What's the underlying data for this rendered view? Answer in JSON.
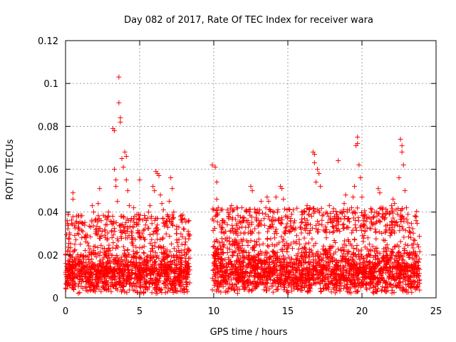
{
  "chart_data": {
    "type": "scatter",
    "title": "Day 082 of 2017, Rate Of TEC Index for receiver wara",
    "xlabel": "GPS time / hours",
    "ylabel": "ROTI / TECUs",
    "xlim": [
      0,
      25
    ],
    "ylim": [
      0,
      0.12
    ],
    "x_ticks": [
      0,
      5,
      10,
      15,
      20,
      25
    ],
    "x_tick_labels": [
      "0",
      "5",
      "10",
      "15",
      "20",
      "25"
    ],
    "y_ticks": [
      0,
      0.02,
      0.04,
      0.06,
      0.08,
      0.1,
      0.12
    ],
    "y_tick_labels": [
      "0",
      "0.02",
      "0.04",
      "0.06",
      "0.08",
      "0.1",
      "0.12"
    ],
    "grid": true,
    "marker": "+",
    "color": "#ff0000",
    "data_gap": [
      8.4,
      9.9
    ],
    "series": [
      {
        "name": "ROTI",
        "points": [
          [
            0.1,
            0.01
          ],
          [
            0.2,
            0.014
          ],
          [
            0.3,
            0.018
          ],
          [
            0.4,
            0.012
          ],
          [
            0.5,
            0.049
          ],
          [
            0.5,
            0.046
          ],
          [
            0.6,
            0.022
          ],
          [
            0.7,
            0.035
          ],
          [
            0.8,
            0.03
          ],
          [
            0.9,
            0.016
          ],
          [
            1.0,
            0.025
          ],
          [
            1.1,
            0.035
          ],
          [
            1.2,
            0.019
          ],
          [
            1.4,
            0.028
          ],
          [
            1.5,
            0.012
          ],
          [
            1.6,
            0.02
          ],
          [
            1.7,
            0.033
          ],
          [
            1.8,
            0.043
          ],
          [
            1.9,
            0.04
          ],
          [
            2.0,
            0.024
          ],
          [
            2.1,
            0.03
          ],
          [
            2.2,
            0.044
          ],
          [
            2.3,
            0.051
          ],
          [
            2.4,
            0.036
          ],
          [
            2.5,
            0.018
          ],
          [
            2.6,
            0.021
          ],
          [
            2.7,
            0.034
          ],
          [
            2.8,
            0.027
          ],
          [
            2.9,
            0.04
          ],
          [
            3.0,
            0.022
          ],
          [
            3.1,
            0.031
          ],
          [
            3.2,
            0.079
          ],
          [
            3.3,
            0.078
          ],
          [
            3.3,
            0.06
          ],
          [
            3.4,
            0.055
          ],
          [
            3.4,
            0.052
          ],
          [
            3.5,
            0.045
          ],
          [
            3.6,
            0.103
          ],
          [
            3.6,
            0.091
          ],
          [
            3.7,
            0.084
          ],
          [
            3.7,
            0.082
          ],
          [
            3.8,
            0.065
          ],
          [
            3.9,
            0.061
          ],
          [
            4.0,
            0.068
          ],
          [
            4.1,
            0.066
          ],
          [
            4.1,
            0.055
          ],
          [
            4.2,
            0.05
          ],
          [
            4.3,
            0.043
          ],
          [
            4.4,
            0.036
          ],
          [
            4.5,
            0.028
          ],
          [
            4.6,
            0.042
          ],
          [
            4.8,
            0.035
          ],
          [
            4.9,
            0.03
          ],
          [
            5.0,
            0.055
          ],
          [
            5.1,
            0.028
          ],
          [
            5.3,
            0.024
          ],
          [
            5.4,
            0.034
          ],
          [
            5.6,
            0.04
          ],
          [
            5.7,
            0.043
          ],
          [
            5.8,
            0.038
          ],
          [
            5.9,
            0.052
          ],
          [
            6.0,
            0.05
          ],
          [
            6.1,
            0.059
          ],
          [
            6.2,
            0.058
          ],
          [
            6.3,
            0.057
          ],
          [
            6.4,
            0.048
          ],
          [
            6.5,
            0.044
          ],
          [
            6.6,
            0.041
          ],
          [
            6.8,
            0.036
          ],
          [
            6.9,
            0.033
          ],
          [
            7.0,
            0.045
          ],
          [
            7.1,
            0.056
          ],
          [
            7.2,
            0.051
          ],
          [
            7.3,
            0.04
          ],
          [
            7.5,
            0.03
          ],
          [
            7.6,
            0.024
          ],
          [
            7.8,
            0.022
          ],
          [
            7.9,
            0.037
          ],
          [
            8.0,
            0.032
          ],
          [
            8.1,
            0.026
          ],
          [
            8.2,
            0.021
          ],
          [
            8.3,
            0.016
          ],
          [
            9.9,
            0.062
          ],
          [
            10.0,
            0.041
          ],
          [
            10.0,
            0.036
          ],
          [
            10.1,
            0.061
          ],
          [
            10.2,
            0.054
          ],
          [
            10.2,
            0.046
          ],
          [
            10.3,
            0.042
          ],
          [
            10.4,
            0.034
          ],
          [
            10.5,
            0.033
          ],
          [
            10.6,
            0.036
          ],
          [
            10.7,
            0.03
          ],
          [
            10.8,
            0.031
          ],
          [
            10.9,
            0.028
          ],
          [
            11.0,
            0.038
          ],
          [
            11.1,
            0.025
          ],
          [
            11.2,
            0.043
          ],
          [
            11.3,
            0.041
          ],
          [
            11.4,
            0.026
          ],
          [
            11.5,
            0.03
          ],
          [
            11.6,
            0.032
          ],
          [
            11.8,
            0.035
          ],
          [
            11.9,
            0.042
          ],
          [
            12.0,
            0.036
          ],
          [
            12.2,
            0.041
          ],
          [
            12.3,
            0.035
          ],
          [
            12.4,
            0.04
          ],
          [
            12.5,
            0.052
          ],
          [
            12.6,
            0.05
          ],
          [
            12.8,
            0.04
          ],
          [
            12.9,
            0.036
          ],
          [
            13.0,
            0.034
          ],
          [
            13.1,
            0.041
          ],
          [
            13.2,
            0.045
          ],
          [
            13.4,
            0.037
          ],
          [
            13.5,
            0.039
          ],
          [
            13.6,
            0.047
          ],
          [
            13.7,
            0.045
          ],
          [
            13.8,
            0.041
          ],
          [
            13.9,
            0.036
          ],
          [
            14.0,
            0.033
          ],
          [
            14.1,
            0.03
          ],
          [
            14.2,
            0.047
          ],
          [
            14.3,
            0.04
          ],
          [
            14.4,
            0.036
          ],
          [
            14.5,
            0.052
          ],
          [
            14.6,
            0.051
          ],
          [
            14.7,
            0.046
          ],
          [
            14.8,
            0.03
          ],
          [
            14.9,
            0.033
          ],
          [
            15.0,
            0.038
          ],
          [
            15.2,
            0.031
          ],
          [
            15.4,
            0.026
          ],
          [
            15.6,
            0.029
          ],
          [
            15.8,
            0.025
          ],
          [
            15.9,
            0.032
          ],
          [
            16.0,
            0.04
          ],
          [
            16.2,
            0.035
          ],
          [
            16.3,
            0.043
          ],
          [
            16.5,
            0.042
          ],
          [
            16.6,
            0.038
          ],
          [
            16.7,
            0.068
          ],
          [
            16.8,
            0.067
          ],
          [
            16.8,
            0.063
          ],
          [
            16.9,
            0.054
          ],
          [
            17.0,
            0.06
          ],
          [
            17.1,
            0.058
          ],
          [
            17.2,
            0.052
          ],
          [
            17.3,
            0.034
          ],
          [
            17.5,
            0.031
          ],
          [
            17.6,
            0.028
          ],
          [
            17.8,
            0.043
          ],
          [
            17.9,
            0.037
          ],
          [
            18.0,
            0.035
          ],
          [
            18.1,
            0.033
          ],
          [
            18.3,
            0.038
          ],
          [
            18.4,
            0.064
          ],
          [
            18.5,
            0.031
          ],
          [
            18.7,
            0.034
          ],
          [
            18.8,
            0.044
          ],
          [
            18.9,
            0.048
          ],
          [
            19.0,
            0.04
          ],
          [
            19.1,
            0.037
          ],
          [
            19.3,
            0.042
          ],
          [
            19.4,
            0.047
          ],
          [
            19.5,
            0.052
          ],
          [
            19.6,
            0.071
          ],
          [
            19.7,
            0.075
          ],
          [
            19.7,
            0.072
          ],
          [
            19.8,
            0.062
          ],
          [
            19.9,
            0.056
          ],
          [
            20.0,
            0.047
          ],
          [
            20.1,
            0.036
          ],
          [
            20.2,
            0.031
          ],
          [
            20.4,
            0.028
          ],
          [
            20.5,
            0.025
          ],
          [
            20.6,
            0.022
          ],
          [
            20.7,
            0.034
          ],
          [
            20.8,
            0.038
          ],
          [
            20.9,
            0.032
          ],
          [
            21.0,
            0.04
          ],
          [
            21.1,
            0.051
          ],
          [
            21.2,
            0.049
          ],
          [
            21.3,
            0.042
          ],
          [
            21.4,
            0.038
          ],
          [
            21.6,
            0.031
          ],
          [
            21.7,
            0.034
          ],
          [
            21.9,
            0.029
          ],
          [
            22.0,
            0.043
          ],
          [
            22.1,
            0.046
          ],
          [
            22.2,
            0.044
          ],
          [
            22.3,
            0.041
          ],
          [
            22.4,
            0.039
          ],
          [
            22.5,
            0.056
          ],
          [
            22.6,
            0.074
          ],
          [
            22.7,
            0.071
          ],
          [
            22.7,
            0.068
          ],
          [
            22.8,
            0.062
          ],
          [
            22.9,
            0.05
          ],
          [
            23.0,
            0.042
          ],
          [
            23.1,
            0.035
          ],
          [
            23.2,
            0.031
          ],
          [
            23.3,
            0.028
          ],
          [
            23.5,
            0.027
          ],
          [
            23.6,
            0.02
          ]
        ],
        "baseline": {
          "description_free": true,
          "segments": [
            {
              "x_range": [
                0.0,
                8.4
              ],
              "y_range": [
                0.002,
                0.027
              ]
            },
            {
              "x_range": [
                9.9,
                23.9
              ],
              "y_range": [
                0.002,
                0.03
              ]
            }
          ]
        }
      }
    ]
  }
}
